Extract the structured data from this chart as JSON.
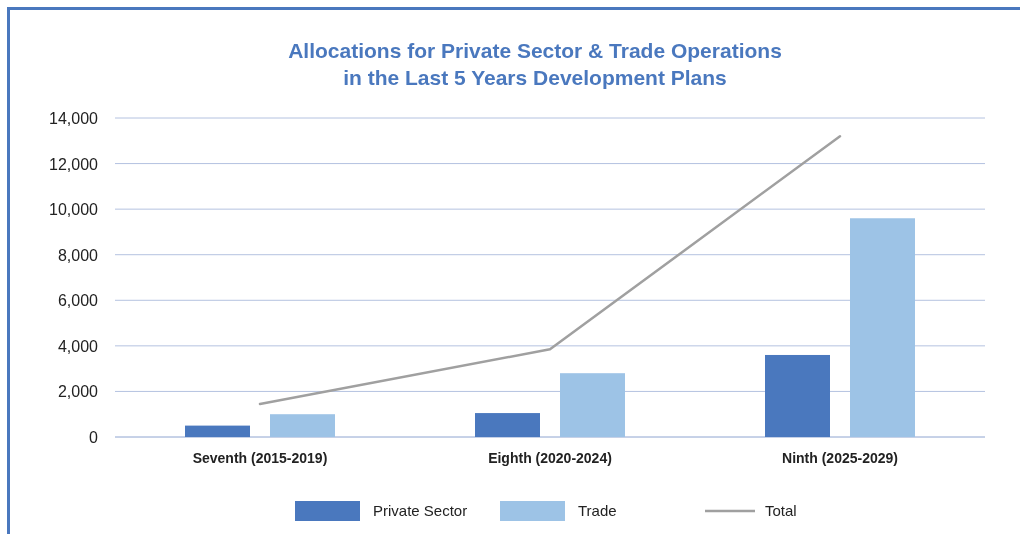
{
  "chart_data": {
    "type": "bar",
    "title": "Allocations for Private Sector & Trade Operations\nin the Last 5 Years Development Plans",
    "categories": [
      "Seventh (2015-2019)",
      "Eighth (2020-2024)",
      "Ninth (2025-2029)"
    ],
    "series": [
      {
        "name": "Private Sector",
        "color": "#4a78be",
        "values": [
          500,
          1050,
          3600
        ]
      },
      {
        "name": "Trade",
        "color": "#9dc3e6",
        "values": [
          1000,
          2800,
          9600
        ]
      },
      {
        "name": "Total",
        "type": "line",
        "color": "#a0a0a0",
        "values": [
          1450,
          3850,
          13200
        ]
      }
    ],
    "ylim": [
      0,
      14000
    ],
    "yticks": [
      {
        "value": 0,
        "label": "0"
      },
      {
        "value": 2000,
        "label": "2,000"
      },
      {
        "value": 4000,
        "label": "4,000"
      },
      {
        "value": 6000,
        "label": "6,000"
      },
      {
        "value": 8000,
        "label": "8,000"
      },
      {
        "value": 10000,
        "label": "10,000"
      },
      {
        "value": 12000,
        "label": "12,000"
      },
      {
        "value": 14000,
        "label": "14,000"
      }
    ],
    "grid": "y",
    "legend": "bottom"
  }
}
